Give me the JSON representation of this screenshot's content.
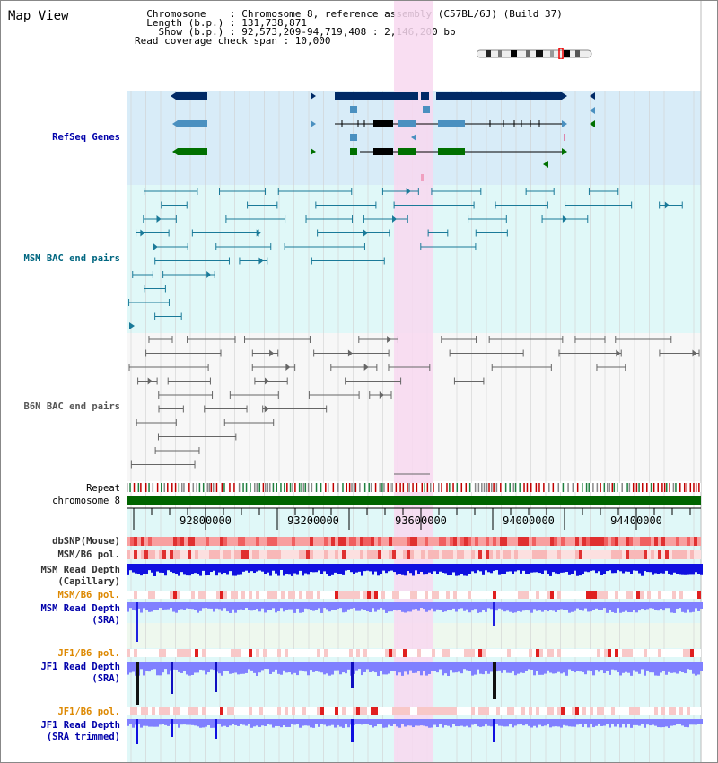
{
  "header": {
    "title": "Map View",
    "info_lines": [
      "  Chromosome    : Chromosome 8, reference assembly (C57BL/6J) (Build 37)",
      "  Length (b.p.) : 131,738,871",
      "    Show (b.p.) : 92,573,209-94,719,408 : 2,146,200 bp",
      "Read coverage check span : 10,000"
    ]
  },
  "tracks": {
    "refseq": {
      "label": "RefSeq Genes",
      "color": "#0000aa"
    },
    "msm_bac": {
      "label": "MSM BAC end pairs",
      "color": "#006680"
    },
    "b6n_bac": {
      "label": "B6N BAC end pairs",
      "color": "#555555"
    },
    "repeat": {
      "label": "Repeat"
    },
    "chromosome": {
      "label": "chromosome 8"
    },
    "dbsnp": {
      "label": "dbSNP(Mouse)"
    },
    "msm_b6_pol_1": {
      "label": "MSM/B6 pol."
    },
    "msm_depth_cap": {
      "label_line1": "MSM Read Depth",
      "label_line2": "(Capillary)"
    },
    "msm_b6_pol_2": {
      "label": "MSM/B6 pol.",
      "color": "#dd8800"
    },
    "msm_depth_sra": {
      "label_line1": "MSM Read Depth",
      "label_line2": "(SRA)",
      "color": "#0000aa"
    },
    "jf1_b6_pol_1": {
      "label": "JF1/B6 pol.",
      "color": "#dd8800"
    },
    "jf1_depth_sra": {
      "label_line1": "JF1 Read Depth",
      "label_line2": "(SRA)",
      "color": "#0000aa"
    },
    "jf1_b6_pol_2": {
      "label": "JF1/B6 pol.",
      "color": "#dd8800"
    },
    "jf1_depth_trim": {
      "label_line1": "JF1 Read Depth",
      "label_line2": "(SRA trimmed)",
      "color": "#0000aa"
    }
  },
  "axis": {
    "ticks": [
      "92800000",
      "93200000",
      "93600000",
      "94000000",
      "94400000"
    ]
  },
  "colors": {
    "highlight": "#f8d8f0",
    "refseq_bg": "#d8ecf8",
    "msm_bg": "#e0f8f8",
    "gene_dark": "#002a66",
    "gene_mid": "#4a90c0",
    "gene_green": "#007000",
    "chromosome_bar": "#006400",
    "depth_blue": "#1010e0",
    "depth_light": "#8080ff"
  }
}
